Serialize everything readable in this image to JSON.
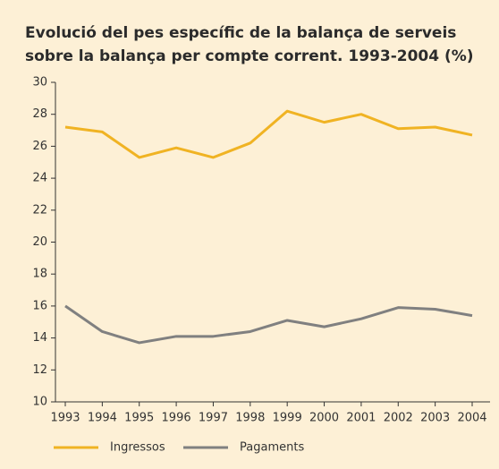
{
  "chart_data": {
    "type": "line",
    "title": "Evolució del pes específic de la balança de serveis sobre la balança per compte corrent. 1993-2004 (%)",
    "categories": [
      "1993",
      "1994",
      "1995",
      "1996",
      "1997",
      "1998",
      "1999",
      "2000",
      "2001",
      "2002",
      "2003",
      "2004"
    ],
    "series": [
      {
        "name": "Ingressos",
        "color": "#f0b323",
        "values": [
          27.2,
          26.9,
          25.3,
          25.9,
          25.3,
          26.2,
          28.2,
          27.5,
          28.0,
          27.1,
          27.2,
          26.7
        ]
      },
      {
        "name": "Pagaments",
        "color": "#808080",
        "values": [
          16.0,
          14.4,
          13.7,
          14.1,
          14.1,
          14.4,
          15.1,
          14.7,
          15.2,
          15.9,
          15.8,
          15.4
        ]
      }
    ],
    "ylim": [
      10,
      30
    ],
    "yticks": [
      10,
      12,
      14,
      16,
      18,
      20,
      22,
      24,
      26,
      28,
      30
    ],
    "legend": "bottom"
  }
}
